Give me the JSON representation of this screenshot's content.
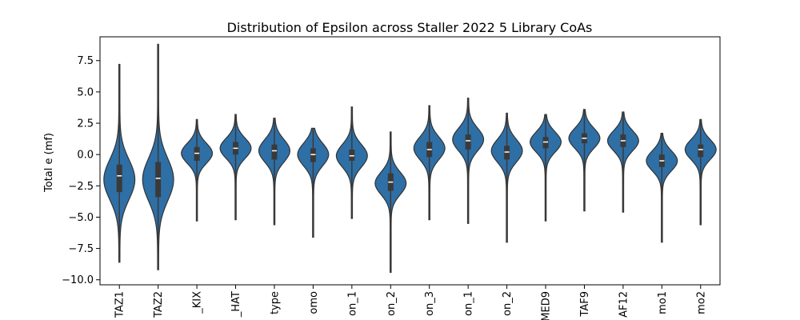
{
  "chart_data": {
    "type": "violin",
    "title": "Distribution of Epsilon across Staller 2022 5 Library CoAs",
    "xlabel": "",
    "ylabel": "Total e (mf)",
    "ylim": [
      -10.4,
      9.4
    ],
    "yticks": [
      7.5,
      5.0,
      2.5,
      0.0,
      -2.5,
      -5.0,
      -7.5,
      -10.0
    ],
    "ytick_labels": [
      "7.5",
      "5.0",
      "2.5",
      "0.0",
      "−2.5",
      "−5.0",
      "−7.5",
      "−10.0"
    ],
    "color": "#2e6fa6",
    "series": [
      {
        "label": "TAZ1",
        "min": -8.6,
        "q1": -3.0,
        "median": -1.7,
        "q3": -0.8,
        "max": 7.2,
        "mode": -2.0,
        "spread": 1.6
      },
      {
        "label": "TAZ2",
        "min": -9.2,
        "q1": -3.4,
        "median": -1.9,
        "q3": -0.6,
        "max": 8.8,
        "mode": -2.0,
        "spread": 1.7
      },
      {
        "label": "_KIX",
        "min": -5.3,
        "q1": -0.5,
        "median": 0.1,
        "q3": 0.6,
        "max": 2.8,
        "mode": 0.1,
        "spread": 0.8
      },
      {
        "label": "_HAT",
        "min": -5.2,
        "q1": 0.0,
        "median": 0.5,
        "q3": 1.0,
        "max": 3.2,
        "mode": 0.5,
        "spread": 0.8
      },
      {
        "label": "type",
        "min": -5.6,
        "q1": -0.4,
        "median": 0.3,
        "q3": 0.8,
        "max": 2.9,
        "mode": 0.3,
        "spread": 0.9
      },
      {
        "label": "omo",
        "min": -6.6,
        "q1": -0.6,
        "median": 0.0,
        "q3": 0.5,
        "max": 2.1,
        "mode": 0.0,
        "spread": 0.9
      },
      {
        "label": "on_1",
        "min": -5.1,
        "q1": -0.5,
        "median": -0.1,
        "q3": 0.4,
        "max": 3.8,
        "mode": -0.1,
        "spread": 0.9
      },
      {
        "label": "on_2",
        "min": -9.4,
        "q1": -2.9,
        "median": -2.2,
        "q3": -1.5,
        "max": 1.8,
        "mode": -2.3,
        "spread": 0.9
      },
      {
        "label": "on_3",
        "min": -5.2,
        "q1": -0.2,
        "median": 0.4,
        "q3": 1.0,
        "max": 3.9,
        "mode": 0.5,
        "spread": 0.9
      },
      {
        "label": "on_1",
        "min": -5.5,
        "q1": 0.4,
        "median": 1.1,
        "q3": 1.6,
        "max": 4.5,
        "mode": 1.2,
        "spread": 0.9
      },
      {
        "label": "on_2",
        "min": -7.0,
        "q1": -0.4,
        "median": 0.2,
        "q3": 0.7,
        "max": 3.3,
        "mode": 0.3,
        "spread": 0.9
      },
      {
        "label": "MED9",
        "min": -5.3,
        "q1": 0.5,
        "median": 1.0,
        "q3": 1.4,
        "max": 3.2,
        "mode": 1.0,
        "spread": 0.8
      },
      {
        "label": "TAF9",
        "min": -4.5,
        "q1": 0.9,
        "median": 1.3,
        "q3": 1.7,
        "max": 3.6,
        "mode": 1.3,
        "spread": 0.8
      },
      {
        "label": "AF12",
        "min": -4.6,
        "q1": 0.6,
        "median": 1.1,
        "q3": 1.6,
        "max": 3.4,
        "mode": 1.1,
        "spread": 0.8
      },
      {
        "label": "mo1",
        "min": -7.0,
        "q1": -1.0,
        "median": -0.5,
        "q3": 0.0,
        "max": 1.7,
        "mode": -0.5,
        "spread": 0.8
      },
      {
        "label": "mo2",
        "min": -5.6,
        "q1": -0.2,
        "median": 0.4,
        "q3": 0.8,
        "max": 2.8,
        "mode": 0.4,
        "spread": 0.8
      }
    ]
  }
}
